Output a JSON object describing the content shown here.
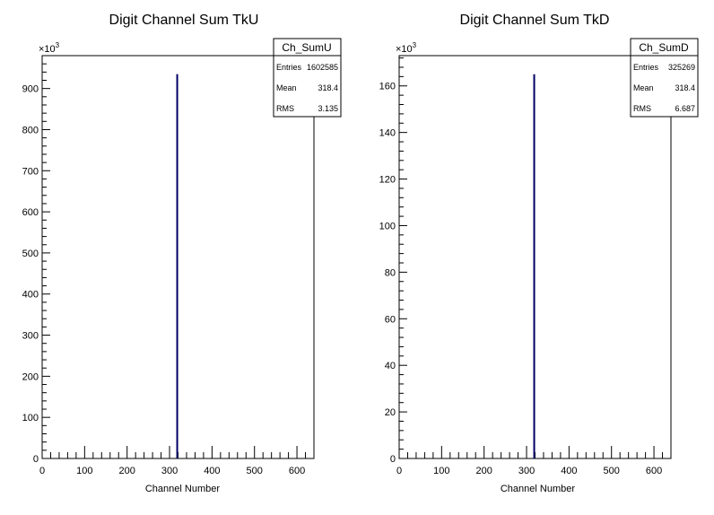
{
  "chart_data": [
    {
      "type": "histogram",
      "title": "Digit Channel Sum TkU",
      "xlabel": "Channel Number",
      "ylabel": "",
      "xlim": [
        0,
        640
      ],
      "ylim": [
        0,
        980
      ],
      "y_multiplier": "×10",
      "y_multiplier_exp": "3",
      "xticks": [
        0,
        100,
        200,
        300,
        400,
        500,
        600
      ],
      "yticks": [
        0,
        100,
        200,
        300,
        400,
        500,
        600,
        700,
        800,
        900
      ],
      "bins": [
        {
          "x": 318,
          "value": 935
        }
      ],
      "series_color": "#000066",
      "stats": {
        "name": "Ch_SumU",
        "rows": [
          {
            "label": "Entries",
            "value": "1602585"
          },
          {
            "label": "Mean",
            "value": "318.4"
          },
          {
            "label": "RMS",
            "value": "3.135"
          }
        ]
      }
    },
    {
      "type": "histogram",
      "title": "Digit Channel Sum TkD",
      "xlabel": "Channel Number",
      "ylabel": "",
      "xlim": [
        0,
        640
      ],
      "ylim": [
        0,
        173
      ],
      "y_multiplier": "×10",
      "y_multiplier_exp": "3",
      "xticks": [
        0,
        100,
        200,
        300,
        400,
        500,
        600
      ],
      "yticks": [
        0,
        20,
        40,
        60,
        80,
        100,
        120,
        140,
        160
      ],
      "bins": [
        {
          "x": 318,
          "value": 165
        }
      ],
      "series_color": "#000066",
      "stats": {
        "name": "Ch_SumD",
        "rows": [
          {
            "label": "Entries",
            "value": "325269"
          },
          {
            "label": "Mean",
            "value": "318.4"
          },
          {
            "label": "RMS",
            "value": "6.687"
          }
        ]
      }
    }
  ]
}
